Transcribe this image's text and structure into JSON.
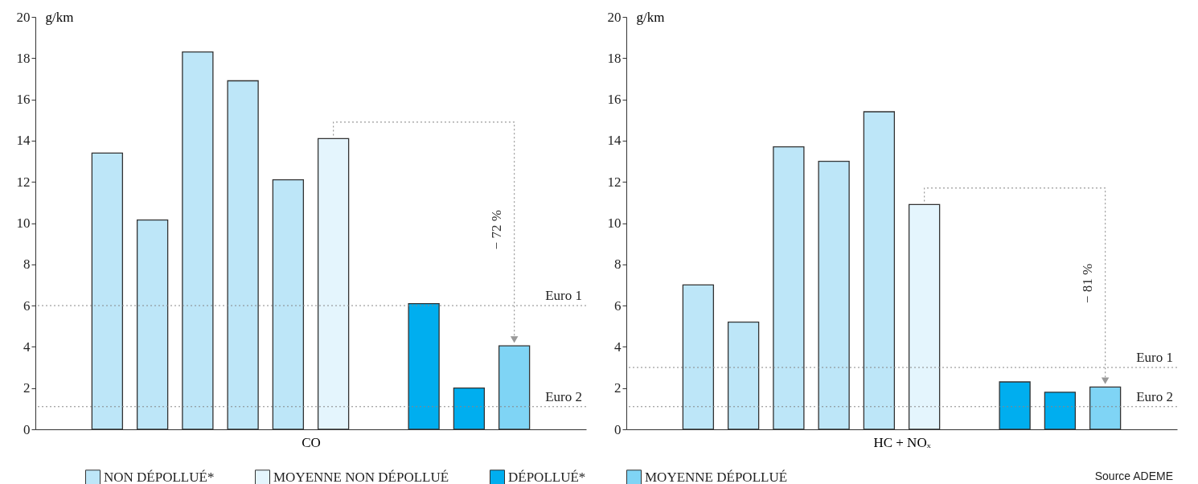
{
  "chart_data": [
    {
      "type": "bar",
      "xlabel": "CO",
      "ylabel": "g/km",
      "categories": [
        null,
        null,
        null,
        null,
        null,
        null,
        null,
        null,
        null,
        null,
        null,
        null
      ],
      "series": [
        {
          "name": "NON DÉPOLLUÉ*",
          "color": "#bde6f8",
          "values": [
            null,
            13.4,
            10.15,
            18.3,
            16.9,
            12.1,
            null,
            null,
            null,
            null,
            null,
            null
          ]
        },
        {
          "name": "MOYENNE NON DÉPOLLUÉ",
          "color": "#e4f5fd",
          "values": [
            null,
            null,
            null,
            null,
            null,
            null,
            14.1,
            null,
            null,
            null,
            null,
            null
          ]
        },
        {
          "name": "DÉPOLLUÉ*",
          "color": "#00aeef",
          "values": [
            null,
            null,
            null,
            null,
            null,
            null,
            null,
            null,
            6.1,
            2.0,
            null,
            null
          ]
        },
        {
          "name": "MOYENNE DÉPOLLUÉ",
          "color": "#7fd4f5",
          "values": [
            null,
            null,
            null,
            null,
            null,
            null,
            null,
            null,
            null,
            null,
            4.05,
            null
          ]
        }
      ],
      "ylim": [
        0,
        20
      ],
      "yticks": [
        0,
        2,
        4,
        6,
        8,
        10,
        12,
        14,
        16,
        18,
        20
      ],
      "tick_labels": "y",
      "legend": "bottom",
      "ref_lines": [
        {
          "axis": "y",
          "value": 6,
          "label": "Euro 1",
          "color": "#888888",
          "line_style": "dotted"
        },
        {
          "axis": "y",
          "value": 1.1,
          "label": "Euro 2",
          "color": "#888888",
          "line_style": "dotted"
        }
      ],
      "annotations": [
        "− 72 %"
      ]
    },
    {
      "type": "bar",
      "xlabel": "HC + NOₓ",
      "ylabel": "g/km",
      "categories": [
        null,
        null,
        null,
        null,
        null,
        null,
        null,
        null,
        null,
        null,
        null,
        null
      ],
      "series": [
        {
          "name": "NON DÉPOLLUÉ*",
          "color": "#bde6f8",
          "values": [
            null,
            7.0,
            5.2,
            13.7,
            13.0,
            15.4,
            null,
            null,
            null,
            null,
            null,
            null
          ]
        },
        {
          "name": "MOYENNE NON DÉPOLLUÉ",
          "color": "#e4f5fd",
          "values": [
            null,
            null,
            null,
            null,
            null,
            null,
            10.9,
            null,
            null,
            null,
            null,
            null
          ]
        },
        {
          "name": "DÉPOLLUÉ*",
          "color": "#00aeef",
          "values": [
            null,
            null,
            null,
            null,
            null,
            null,
            null,
            null,
            2.3,
            1.8,
            null,
            null
          ]
        },
        {
          "name": "MOYENNE DÉPOLLUÉ",
          "color": "#7fd4f5",
          "values": [
            null,
            null,
            null,
            null,
            null,
            null,
            null,
            null,
            null,
            null,
            2.05,
            null
          ]
        }
      ],
      "ylim": [
        0,
        20
      ],
      "yticks": [
        0,
        2,
        4,
        6,
        8,
        10,
        12,
        14,
        16,
        18,
        20
      ],
      "tick_labels": "y",
      "ref_lines": [
        {
          "axis": "y",
          "value": 3,
          "label": "Euro 1",
          "color": "#888888",
          "line_style": "dotted"
        },
        {
          "axis": "y",
          "value": 1.1,
          "label": "Euro 2",
          "color": "#888888",
          "line_style": "dotted"
        }
      ],
      "annotations": [
        "− 81 %",
        "Source ADEME"
      ]
    }
  ]
}
